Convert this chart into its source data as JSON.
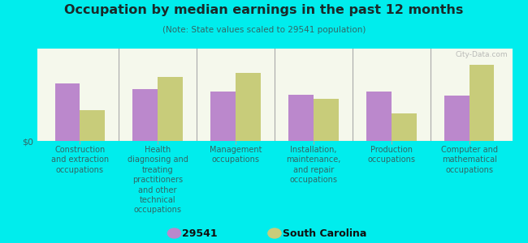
{
  "title": "Occupation by median earnings in the past 12 months",
  "subtitle": "(Note: State values scaled to 29541 population)",
  "background_color": "#00eded",
  "plot_bg_top": "#e8f0d0",
  "plot_bg_bottom": "#f5f8ec",
  "categories": [
    "Construction\nand extraction\noccupations",
    "Health\ndiagnosing and\ntreating\npractitioners\nand other\ntechnical\noccupations",
    "Management\noccupations",
    "Installation,\nmaintenance,\nand repair\noccupations",
    "Production\noccupations",
    "Computer and\nmathematical\noccupations"
  ],
  "values_29541": [
    72,
    65,
    62,
    58,
    62,
    56
  ],
  "values_sc": [
    38,
    80,
    85,
    52,
    34,
    95
  ],
  "color_29541": "#bb88cc",
  "color_sc": "#c8cc7a",
  "legend_labels": [
    "29541",
    "South Carolina"
  ],
  "ylabel": "$0",
  "bar_width": 0.32,
  "ylim": [
    0,
    115
  ],
  "watermark": "City-Data.com",
  "title_color": "#1a2a2a",
  "subtitle_color": "#336666",
  "tick_color": "#336666"
}
